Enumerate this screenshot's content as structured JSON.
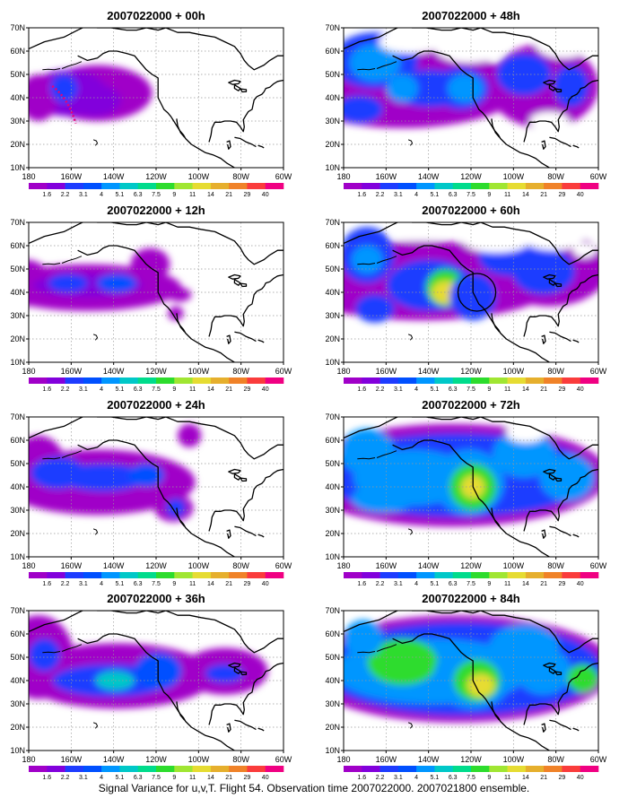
{
  "caption": "Signal Variance for u,v,T. Flight 54. Observation time 2007022000. 2007021800 ensemble.",
  "panels": [
    {
      "id": "p00",
      "title": "2007022000 + 00h",
      "column": 0,
      "row": 0
    },
    {
      "id": "p12",
      "title": "2007022000 + 12h",
      "column": 0,
      "row": 1
    },
    {
      "id": "p24",
      "title": "2007022000 + 24h",
      "column": 0,
      "row": 2
    },
    {
      "id": "p36",
      "title": "2007022000 + 36h",
      "column": 0,
      "row": 3
    },
    {
      "id": "p48",
      "title": "2007022000 + 48h",
      "column": 1,
      "row": 0
    },
    {
      "id": "p60",
      "title": "2007022000 + 60h",
      "column": 1,
      "row": 1
    },
    {
      "id": "p72",
      "title": "2007022000 + 72h",
      "column": 1,
      "row": 2
    },
    {
      "id": "p84",
      "title": "2007022000 + 84h",
      "column": 1,
      "row": 3
    }
  ],
  "x_ticks": [
    "180",
    "160W",
    "140W",
    "120W",
    "100W",
    "80W",
    "60W"
  ],
  "y_ticks": [
    "10N",
    "20N",
    "30N",
    "40N",
    "50N",
    "60N",
    "70N"
  ],
  "colorbar": {
    "labels": [
      "1.6",
      "2.2",
      "3.1",
      "4",
      "5.1",
      "6.3",
      "7.5",
      "9",
      "11",
      "14",
      "21",
      "29",
      "40"
    ],
    "colors": [
      "#a000c8",
      "#8200dc",
      "#1e3cff",
      "#0050ff",
      "#0096ff",
      "#00c8c8",
      "#00dc8c",
      "#2ddc2d",
      "#a0e632",
      "#e6dc32",
      "#e6af2d",
      "#f08228",
      "#fa3c3c",
      "#f00082"
    ]
  },
  "colors": {
    "land_outline": "#000000",
    "grid": "#999999",
    "flight_track": "#e6007a",
    "circle": "#000000"
  }
}
